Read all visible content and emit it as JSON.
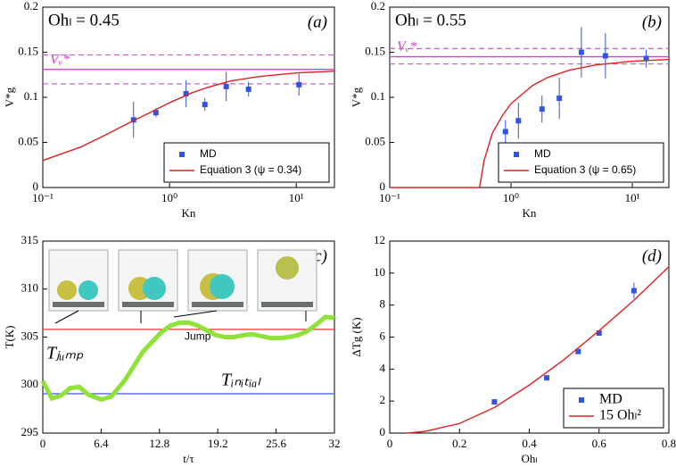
{
  "chart_data": [
    {
      "type": "scatter",
      "title": "Ohₗ = 0.45",
      "label": "(a)",
      "xlabel": "Kn",
      "ylabel": "V*g",
      "xlog": true,
      "xlim": [
        0.1,
        20
      ],
      "xticks": [
        {
          "value": 0.1,
          "label": "10⁻¹"
        },
        {
          "value": 1,
          "label": "10⁰"
        },
        {
          "value": 10,
          "label": "10¹"
        }
      ],
      "ylim": [
        0,
        0.2
      ],
      "yticks": [
        0,
        0.05,
        0.1,
        0.15,
        0.2
      ],
      "legend": "lower right",
      "hlines": [
        {
          "label": "Vᵥ*",
          "value": 0.131,
          "color": "#cc44cc"
        },
        {
          "value": 0.147,
          "color": "#cc66cc",
          "dashed": true
        },
        {
          "value": 0.115,
          "color": "#cc66cc",
          "dashed": true
        }
      ],
      "series": [
        {
          "name": "MD",
          "style": "markers",
          "color": "#3355dd",
          "x": [
            0.52,
            0.78,
            1.35,
            1.9,
            2.8,
            4.2,
            10.5
          ],
          "values": [
            0.075,
            0.083,
            0.104,
            0.092,
            0.112,
            0.109,
            0.114
          ],
          "errors": [
            0.02,
            0.005,
            0.015,
            0.007,
            0.016,
            0.008,
            0.012
          ]
        },
        {
          "name": "Equation 3 (ψ = 0.34)",
          "style": "line",
          "color": "#dd2222",
          "x": [
            0.1,
            0.2,
            0.3,
            0.5,
            0.7,
            1,
            1.5,
            2,
            3,
            5,
            10,
            20
          ],
          "values": [
            0.03,
            0.045,
            0.057,
            0.073,
            0.083,
            0.094,
            0.105,
            0.111,
            0.118,
            0.123,
            0.127,
            0.129
          ]
        }
      ]
    },
    {
      "type": "scatter",
      "title": "Ohₗ = 0.55",
      "label": "(b)",
      "xlabel": "Kn",
      "ylabel": "V*g",
      "xlog": true,
      "xlim": [
        0.1,
        20
      ],
      "xticks": [
        {
          "value": 0.1,
          "label": "10⁻¹"
        },
        {
          "value": 1,
          "label": "10⁰"
        },
        {
          "value": 10,
          "label": "10¹"
        }
      ],
      "ylim": [
        0,
        0.2
      ],
      "yticks": [
        0,
        0.05,
        0.1,
        0.15,
        0.2
      ],
      "legend": "lower right",
      "hlines": [
        {
          "label": "Vᵥ*",
          "value": 0.145,
          "color": "#cc44cc"
        },
        {
          "value": 0.154,
          "color": "#cc66cc",
          "dashed": true
        },
        {
          "value": 0.137,
          "color": "#cc66cc",
          "dashed": true
        }
      ],
      "series": [
        {
          "name": "MD",
          "style": "markers",
          "color": "#3355dd",
          "x": [
            0.9,
            1.15,
            1.8,
            2.5,
            3.8,
            6,
            13
          ],
          "values": [
            0.062,
            0.074,
            0.087,
            0.099,
            0.15,
            0.146,
            0.143
          ],
          "errors": [
            0.013,
            0.02,
            0.015,
            0.023,
            0.028,
            0.025,
            0.01
          ]
        },
        {
          "name": "Equation 3 (ψ = 0.65)",
          "style": "line",
          "color": "#dd2222",
          "x": [
            0.1,
            0.55,
            0.6,
            0.7,
            0.85,
            1,
            1.5,
            2,
            3,
            5,
            10,
            20
          ],
          "values": [
            0,
            0,
            0.03,
            0.06,
            0.08,
            0.093,
            0.113,
            0.122,
            0.13,
            0.136,
            0.14,
            0.142
          ]
        }
      ]
    },
    {
      "type": "line",
      "label": "(c)",
      "xlabel": "t/τ",
      "ylabel": "T(K)",
      "annotation": "Jump",
      "xlim": [
        0,
        32
      ],
      "xticks": [
        0,
        6.4,
        12.8,
        19.2,
        25.6,
        32
      ],
      "ylim": [
        295,
        315
      ],
      "yticks": [
        295,
        300,
        305,
        310,
        315
      ],
      "hlines": [
        {
          "label": "Tⱼᵤₘₚ",
          "value": 305.8,
          "color": "#ee3333"
        },
        {
          "label": "Tᵢₙᵢₜᵢₐₗ",
          "value": 299.1,
          "color": "#5566dd"
        }
      ],
      "series": [
        {
          "style": "line",
          "color": "#8fe23a",
          "x": [
            0,
            1,
            2,
            3,
            4,
            5,
            6.4,
            7.5,
            9,
            10,
            11,
            12,
            13,
            14,
            15,
            16,
            17,
            18,
            19,
            20,
            21,
            22,
            23,
            24,
            25,
            26,
            27,
            28,
            29,
            30,
            31,
            32
          ],
          "values": [
            300.4,
            298.6,
            298.9,
            299.7,
            299.8,
            299.0,
            298.5,
            298.8,
            300.5,
            302,
            303.5,
            304.5,
            305.5,
            306.2,
            306.5,
            306.5,
            306.2,
            305.7,
            305.2,
            305.0,
            305.0,
            305.2,
            305.3,
            305.1,
            304.9,
            304.9,
            305.0,
            305.2,
            305.6,
            306.3,
            307.1,
            307.0
          ]
        }
      ]
    },
    {
      "type": "scatter",
      "label": "(d)",
      "xlabel": "Ohₗ",
      "ylabel": "ΔTg (K)",
      "xlim": [
        0,
        0.8
      ],
      "xticks": [
        0,
        0.2,
        0.4,
        0.6,
        0.8
      ],
      "ylim": [
        0,
        12
      ],
      "yticks": [
        0,
        2,
        4,
        6,
        8,
        10,
        12
      ],
      "legend": "lower right",
      "series": [
        {
          "name": "MD",
          "style": "markers",
          "color": "#3355dd",
          "x": [
            0.3,
            0.45,
            0.54,
            0.6,
            0.7
          ],
          "values": [
            1.95,
            3.45,
            5.1,
            6.25,
            8.9
          ],
          "errors": [
            0,
            0,
            0,
            0,
            0.5
          ]
        },
        {
          "name": "15 Ohₗ²",
          "style": "line",
          "color": "#dd2222",
          "x": [
            0.05,
            0.1,
            0.2,
            0.3,
            0.4,
            0.5,
            0.6,
            0.7,
            0.8
          ],
          "values": [
            0,
            0.1,
            0.6,
            1.6,
            3.0,
            4.6,
            6.4,
            8.3,
            10.4
          ]
        }
      ]
    }
  ]
}
